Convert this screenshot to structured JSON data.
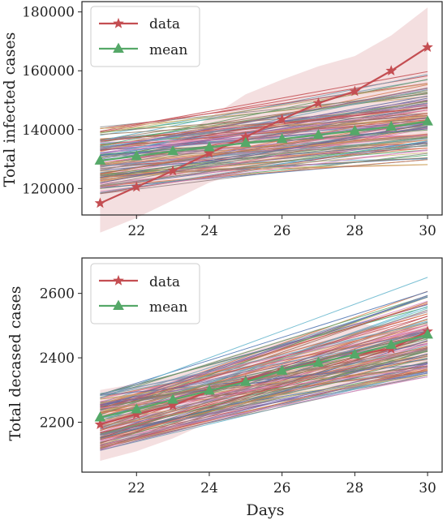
{
  "chart_data": [
    {
      "type": "line",
      "title": "",
      "xlabel": "",
      "ylabel": "Total infected cases",
      "xlim": [
        20.5,
        30.4
      ],
      "ylim": [
        111000,
        183500
      ],
      "x": [
        21,
        22,
        23,
        24,
        25,
        26,
        27,
        28,
        29,
        30
      ],
      "x_ticks": [
        22,
        24,
        26,
        28,
        30
      ],
      "y_ticks": [
        120000,
        140000,
        160000,
        180000
      ],
      "legend_position": "top-left",
      "grid": false,
      "series": [
        {
          "name": "data",
          "color": "#c44e52",
          "marker": "star",
          "values": [
            115000,
            120500,
            126000,
            132000,
            137500,
            143500,
            149000,
            153000,
            160000,
            168000
          ]
        },
        {
          "name": "mean",
          "color": "#55a868",
          "marker": "triangle",
          "values": [
            129500,
            131000,
            132700,
            134000,
            135500,
            136800,
            138200,
            139600,
            141000,
            142800
          ]
        }
      ],
      "band": {
        "color": "#c44e52",
        "lower": [
          105000,
          110000,
          116000,
          122000,
          126000,
          129000,
          131000,
          133000,
          135000,
          137000
        ],
        "upper": [
          128000,
          131000,
          136000,
          144000,
          152000,
          157000,
          161500,
          165000,
          172000,
          181500
        ]
      },
      "ensemble": {
        "count": 120,
        "start_range": [
          118000,
          141000
        ],
        "end_range": [
          128000,
          162000
        ],
        "colors": [
          "#4c72b0",
          "#dd8452",
          "#55a868",
          "#c44e52",
          "#8172b3",
          "#937860",
          "#da8bc3",
          "#8c8c8c",
          "#ccb974",
          "#64b5cd"
        ]
      }
    },
    {
      "type": "line",
      "title": "",
      "xlabel": "Days",
      "ylabel": "Total decased cases",
      "xlim": [
        20.5,
        30.4
      ],
      "ylim": [
        2045,
        2710
      ],
      "x": [
        21,
        22,
        23,
        24,
        25,
        26,
        27,
        28,
        29,
        30
      ],
      "x_ticks": [
        22,
        24,
        26,
        28,
        30
      ],
      "y_ticks": [
        2200,
        2400,
        2600
      ],
      "legend_position": "top-left",
      "grid": false,
      "series": [
        {
          "name": "data",
          "color": "#c44e52",
          "marker": "star",
          "values": [
            2193,
            2225,
            2252,
            2297,
            2330,
            2360,
            2385,
            2410,
            2428,
            2482
          ]
        },
        {
          "name": "mean",
          "color": "#55a868",
          "marker": "triangle",
          "values": [
            2215,
            2240,
            2270,
            2298,
            2325,
            2360,
            2385,
            2410,
            2440,
            2472
          ]
        }
      ],
      "band": {
        "color": "#c44e52",
        "lower": [
          2080,
          2110,
          2150,
          2200,
          2240,
          2280,
          2305,
          2320,
          2335,
          2380
        ],
        "upper": [
          2300,
          2320,
          2350,
          2385,
          2420,
          2455,
          2490,
          2510,
          2490,
          2510
        ]
      },
      "ensemble": {
        "count": 120,
        "start_range": [
          2110,
          2290
        ],
        "end_range": [
          2340,
          2680
        ],
        "colors": [
          "#4c72b0",
          "#dd8452",
          "#55a868",
          "#c44e52",
          "#8172b3",
          "#937860",
          "#da8bc3",
          "#8c8c8c",
          "#ccb974",
          "#64b5cd"
        ]
      }
    }
  ]
}
